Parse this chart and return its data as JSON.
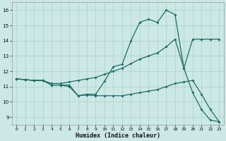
{
  "xlabel": "Humidex (Indice chaleur)",
  "bg_color": "#cce8e5",
  "grid_color": "#aad0cc",
  "line_color": "#1a6e65",
  "xlim": [
    -0.5,
    23.5
  ],
  "ylim": [
    8.5,
    16.5
  ],
  "xticks": [
    0,
    1,
    2,
    3,
    4,
    5,
    6,
    7,
    8,
    9,
    10,
    11,
    12,
    13,
    14,
    15,
    16,
    17,
    18,
    19,
    20,
    21,
    22,
    23
  ],
  "yticks": [
    9,
    10,
    11,
    12,
    13,
    14,
    15,
    16
  ],
  "line1_x": [
    0,
    1,
    2,
    3,
    4,
    5,
    6,
    7,
    8,
    9,
    10,
    11,
    12,
    13,
    14,
    15,
    16,
    17,
    18,
    19,
    20,
    21,
    22,
    23
  ],
  "line1_y": [
    11.5,
    11.45,
    11.4,
    11.4,
    11.1,
    11.1,
    11.1,
    10.4,
    10.5,
    10.5,
    11.35,
    12.3,
    12.45,
    14.0,
    15.2,
    15.4,
    15.2,
    16.0,
    15.7,
    12.2,
    10.6,
    9.5,
    8.8,
    8.7
  ],
  "line2_full_x": [
    0,
    1,
    2,
    3,
    4,
    5,
    6,
    7,
    8,
    9,
    10,
    11,
    12,
    13,
    14,
    15,
    16,
    17,
    18,
    19,
    20,
    21,
    22,
    23
  ],
  "line2_full_y": [
    11.5,
    11.45,
    11.4,
    11.4,
    11.2,
    11.2,
    11.3,
    11.4,
    11.5,
    11.6,
    11.8,
    12.0,
    12.2,
    12.5,
    12.8,
    13.0,
    13.2,
    13.6,
    14.1,
    12.2,
    14.1,
    14.1,
    14.1,
    14.1
  ],
  "line3_full_x": [
    0,
    1,
    2,
    3,
    4,
    5,
    6,
    7,
    8,
    9,
    10,
    11,
    12,
    13,
    14,
    15,
    16,
    17,
    18,
    19,
    20,
    21,
    22,
    23
  ],
  "line3_full_y": [
    11.5,
    11.45,
    11.4,
    11.4,
    11.1,
    11.1,
    11.0,
    10.4,
    10.45,
    10.4,
    10.4,
    10.4,
    10.4,
    10.5,
    10.6,
    10.7,
    10.8,
    11.0,
    11.2,
    11.3,
    11.4,
    10.5,
    9.5,
    8.7
  ]
}
